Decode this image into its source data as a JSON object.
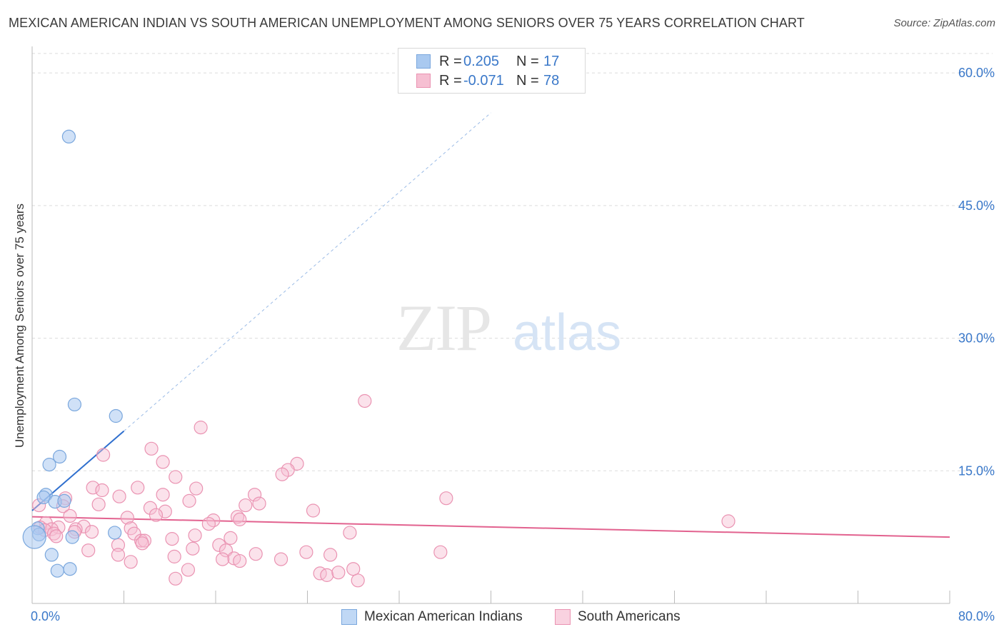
{
  "title": "MEXICAN AMERICAN INDIAN VS SOUTH AMERICAN UNEMPLOYMENT AMONG SENIORS OVER 75 YEARS CORRELATION CHART",
  "source": "Source: ZipAtlas.com",
  "watermark": {
    "zip": "ZIP",
    "atlas": "atlas"
  },
  "legend": {
    "rows": [
      {
        "r_label": "R =",
        "r_value": "0.205",
        "n_label": "N =",
        "n_value": "17"
      },
      {
        "r_label": "R =",
        "r_value": "-0.071",
        "n_label": "N =",
        "n_value": "78"
      }
    ]
  },
  "colors": {
    "blue_fill": "#a9c9f0",
    "blue_stroke": "#7aa7dd",
    "blue_line": "#2f6fce",
    "pink_fill": "#f6bfd2",
    "pink_stroke": "#ea93b2",
    "pink_line": "#e2628f",
    "grid": "#dcdcdc",
    "axis_text": "#3a78c9"
  },
  "chart_data": {
    "type": "scatter",
    "title": "MEXICAN AMERICAN INDIAN VS SOUTH AMERICAN UNEMPLOYMENT AMONG SENIORS OVER 75 YEARS CORRELATION CHART",
    "xlabel": "",
    "ylabel": "Unemployment Among Seniors over 75 years",
    "xlim": [
      0,
      80
    ],
    "ylim": [
      0,
      63
    ],
    "x_tick_labels": [
      "0.0%",
      "80.0%"
    ],
    "y_ticks": [
      15,
      30,
      45,
      60
    ],
    "y_tick_labels": [
      "15.0%",
      "30.0%",
      "45.0%",
      "60.0%"
    ],
    "grid": true,
    "series": [
      {
        "name": "Mexican American Indians",
        "color": "blue",
        "trend": {
          "x0": 0,
          "y0": 10.5,
          "x1": 8,
          "y1": 19.5,
          "extend_to_x": 40
        },
        "points": [
          [
            3.2,
            52.8
          ],
          [
            3.7,
            22.5
          ],
          [
            7.3,
            21.2
          ],
          [
            2.4,
            16.6
          ],
          [
            1.5,
            15.7
          ],
          [
            1.2,
            12.3
          ],
          [
            1.0,
            12.0
          ],
          [
            2.0,
            11.5
          ],
          [
            2.8,
            11.6
          ],
          [
            0.5,
            8.5
          ],
          [
            0.6,
            7.8
          ],
          [
            3.5,
            7.5
          ],
          [
            7.2,
            8.0
          ],
          [
            1.7,
            5.5
          ],
          [
            2.2,
            3.7
          ],
          [
            3.3,
            3.9
          ],
          [
            0.2,
            7.5
          ]
        ]
      },
      {
        "name": "South Americans",
        "color": "pink",
        "trend": {
          "x0": 0,
          "y0": 9.8,
          "x1": 80,
          "y1": 7.5
        },
        "points": [
          [
            29.0,
            22.9
          ],
          [
            14.7,
            19.9
          ],
          [
            10.4,
            17.5
          ],
          [
            6.2,
            16.8
          ],
          [
            11.4,
            16.0
          ],
          [
            23.1,
            15.8
          ],
          [
            22.3,
            15.1
          ],
          [
            21.8,
            14.6
          ],
          [
            12.5,
            14.3
          ],
          [
            5.3,
            13.1
          ],
          [
            9.2,
            13.1
          ],
          [
            14.3,
            13.0
          ],
          [
            6.1,
            12.8
          ],
          [
            19.4,
            12.3
          ],
          [
            11.4,
            12.3
          ],
          [
            36.1,
            11.9
          ],
          [
            2.9,
            11.9
          ],
          [
            7.6,
            12.1
          ],
          [
            13.7,
            11.6
          ],
          [
            5.8,
            11.2
          ],
          [
            19.8,
            11.3
          ],
          [
            18.6,
            11.1
          ],
          [
            2.7,
            11.0
          ],
          [
            0.6,
            11.1
          ],
          [
            10.3,
            10.8
          ],
          [
            11.6,
            10.4
          ],
          [
            24.5,
            10.5
          ],
          [
            3.3,
            9.9
          ],
          [
            10.8,
            10.0
          ],
          [
            17.9,
            9.8
          ],
          [
            8.3,
            9.7
          ],
          [
            18.1,
            9.5
          ],
          [
            15.8,
            9.4
          ],
          [
            60.7,
            9.3
          ],
          [
            1.2,
            9.1
          ],
          [
            15.4,
            9.0
          ],
          [
            4.5,
            8.7
          ],
          [
            0.7,
            8.6
          ],
          [
            2.3,
            8.6
          ],
          [
            8.6,
            8.5
          ],
          [
            1.7,
            8.4
          ],
          [
            3.8,
            8.4
          ],
          [
            1.1,
            8.3
          ],
          [
            3.7,
            8.1
          ],
          [
            5.2,
            8.1
          ],
          [
            27.7,
            8.0
          ],
          [
            8.9,
            7.9
          ],
          [
            1.9,
            7.9
          ],
          [
            14.2,
            7.7
          ],
          [
            2.1,
            7.6
          ],
          [
            17.3,
            7.4
          ],
          [
            12.2,
            7.3
          ],
          [
            9.5,
            7.1
          ],
          [
            9.8,
            7.1
          ],
          [
            9.6,
            6.8
          ],
          [
            16.3,
            6.6
          ],
          [
            7.5,
            6.6
          ],
          [
            4.9,
            6.0
          ],
          [
            14.0,
            6.2
          ],
          [
            16.9,
            6.0
          ],
          [
            35.6,
            5.8
          ],
          [
            23.9,
            5.8
          ],
          [
            7.5,
            5.5
          ],
          [
            19.5,
            5.6
          ],
          [
            26.0,
            5.5
          ],
          [
            17.6,
            5.1
          ],
          [
            16.6,
            5.0
          ],
          [
            12.4,
            5.3
          ],
          [
            21.7,
            5.0
          ],
          [
            18.1,
            4.8
          ],
          [
            8.6,
            4.7
          ],
          [
            28.0,
            3.9
          ],
          [
            13.6,
            3.8
          ],
          [
            25.1,
            3.4
          ],
          [
            25.7,
            3.2
          ],
          [
            12.5,
            2.8
          ],
          [
            26.7,
            3.5
          ],
          [
            28.4,
            2.6
          ]
        ]
      }
    ]
  }
}
